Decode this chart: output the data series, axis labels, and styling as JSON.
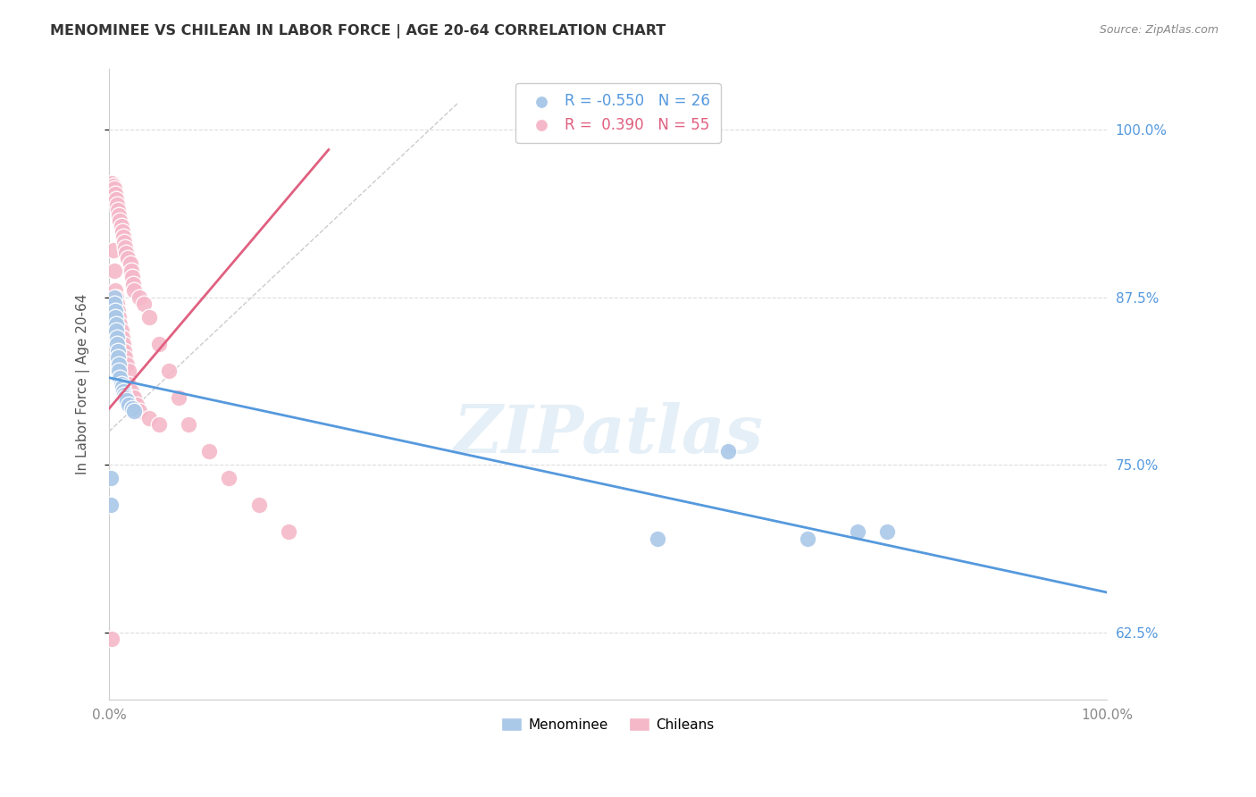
{
  "title": "MENOMINEE VS CHILEAN IN LABOR FORCE | AGE 20-64 CORRELATION CHART",
  "source": "Source: ZipAtlas.com",
  "ylabel": "In Labor Force | Age 20-64",
  "xlim": [
    0,
    1
  ],
  "ylim": [
    0.575,
    1.045
  ],
  "yticks": [
    0.625,
    0.75,
    0.875,
    1.0
  ],
  "ytick_labels": [
    "62.5%",
    "75.0%",
    "87.5%",
    "100.0%"
  ],
  "xticks": [
    0.0,
    0.25,
    0.5,
    0.75,
    1.0
  ],
  "xtick_labels": [
    "0.0%",
    "",
    "",
    "",
    "100.0%"
  ],
  "watermark": "ZIPatlas",
  "menominee_x": [
    0.002,
    0.002,
    0.005,
    0.005,
    0.006,
    0.006,
    0.007,
    0.007,
    0.008,
    0.008,
    0.009,
    0.009,
    0.01,
    0.01,
    0.011,
    0.012,
    0.013,
    0.014,
    0.015,
    0.016,
    0.018,
    0.02,
    0.023,
    0.025,
    0.55,
    0.62,
    0.7,
    0.75,
    0.78
  ],
  "menominee_y": [
    0.74,
    0.72,
    0.875,
    0.87,
    0.865,
    0.86,
    0.855,
    0.85,
    0.845,
    0.84,
    0.835,
    0.83,
    0.825,
    0.82,
    0.815,
    0.81,
    0.808,
    0.805,
    0.802,
    0.8,
    0.798,
    0.795,
    0.792,
    0.79,
    0.695,
    0.76,
    0.695,
    0.7,
    0.7
  ],
  "chilean_x": [
    0.003,
    0.004,
    0.004,
    0.005,
    0.005,
    0.006,
    0.006,
    0.007,
    0.007,
    0.008,
    0.008,
    0.009,
    0.009,
    0.01,
    0.01,
    0.011,
    0.011,
    0.012,
    0.012,
    0.013,
    0.013,
    0.014,
    0.014,
    0.015,
    0.015,
    0.016,
    0.016,
    0.017,
    0.018,
    0.019,
    0.02,
    0.021,
    0.022,
    0.023,
    0.024,
    0.025,
    0.03,
    0.035,
    0.04,
    0.05,
    0.06,
    0.07,
    0.08,
    0.1,
    0.12,
    0.15,
    0.18,
    0.003,
    0.02,
    0.022,
    0.025,
    0.028,
    0.03,
    0.04,
    0.05
  ],
  "chilean_y": [
    0.96,
    0.958,
    0.91,
    0.956,
    0.895,
    0.952,
    0.88,
    0.948,
    0.875,
    0.944,
    0.87,
    0.94,
    0.865,
    0.936,
    0.86,
    0.932,
    0.855,
    0.928,
    0.85,
    0.924,
    0.845,
    0.92,
    0.84,
    0.916,
    0.835,
    0.912,
    0.83,
    0.908,
    0.825,
    0.904,
    0.82,
    0.9,
    0.895,
    0.89,
    0.885,
    0.88,
    0.875,
    0.87,
    0.86,
    0.84,
    0.82,
    0.8,
    0.78,
    0.76,
    0.74,
    0.72,
    0.7,
    0.62,
    0.81,
    0.805,
    0.8,
    0.795,
    0.79,
    0.785,
    0.78
  ],
  "menominee_color": "#aac8e8",
  "chilean_color": "#f5b8c8",
  "menominee_line_color": "#5599dd",
  "chilean_line_color": "#e06080",
  "diagonal_color": "#cccccc",
  "background_color": "#ffffff",
  "grid_color": "#dddddd",
  "men_line_x": [
    0.0,
    1.0
  ],
  "men_line_y": [
    0.815,
    0.655
  ],
  "chi_line_x": [
    0.0,
    0.22
  ],
  "chi_line_y": [
    0.792,
    0.985
  ]
}
